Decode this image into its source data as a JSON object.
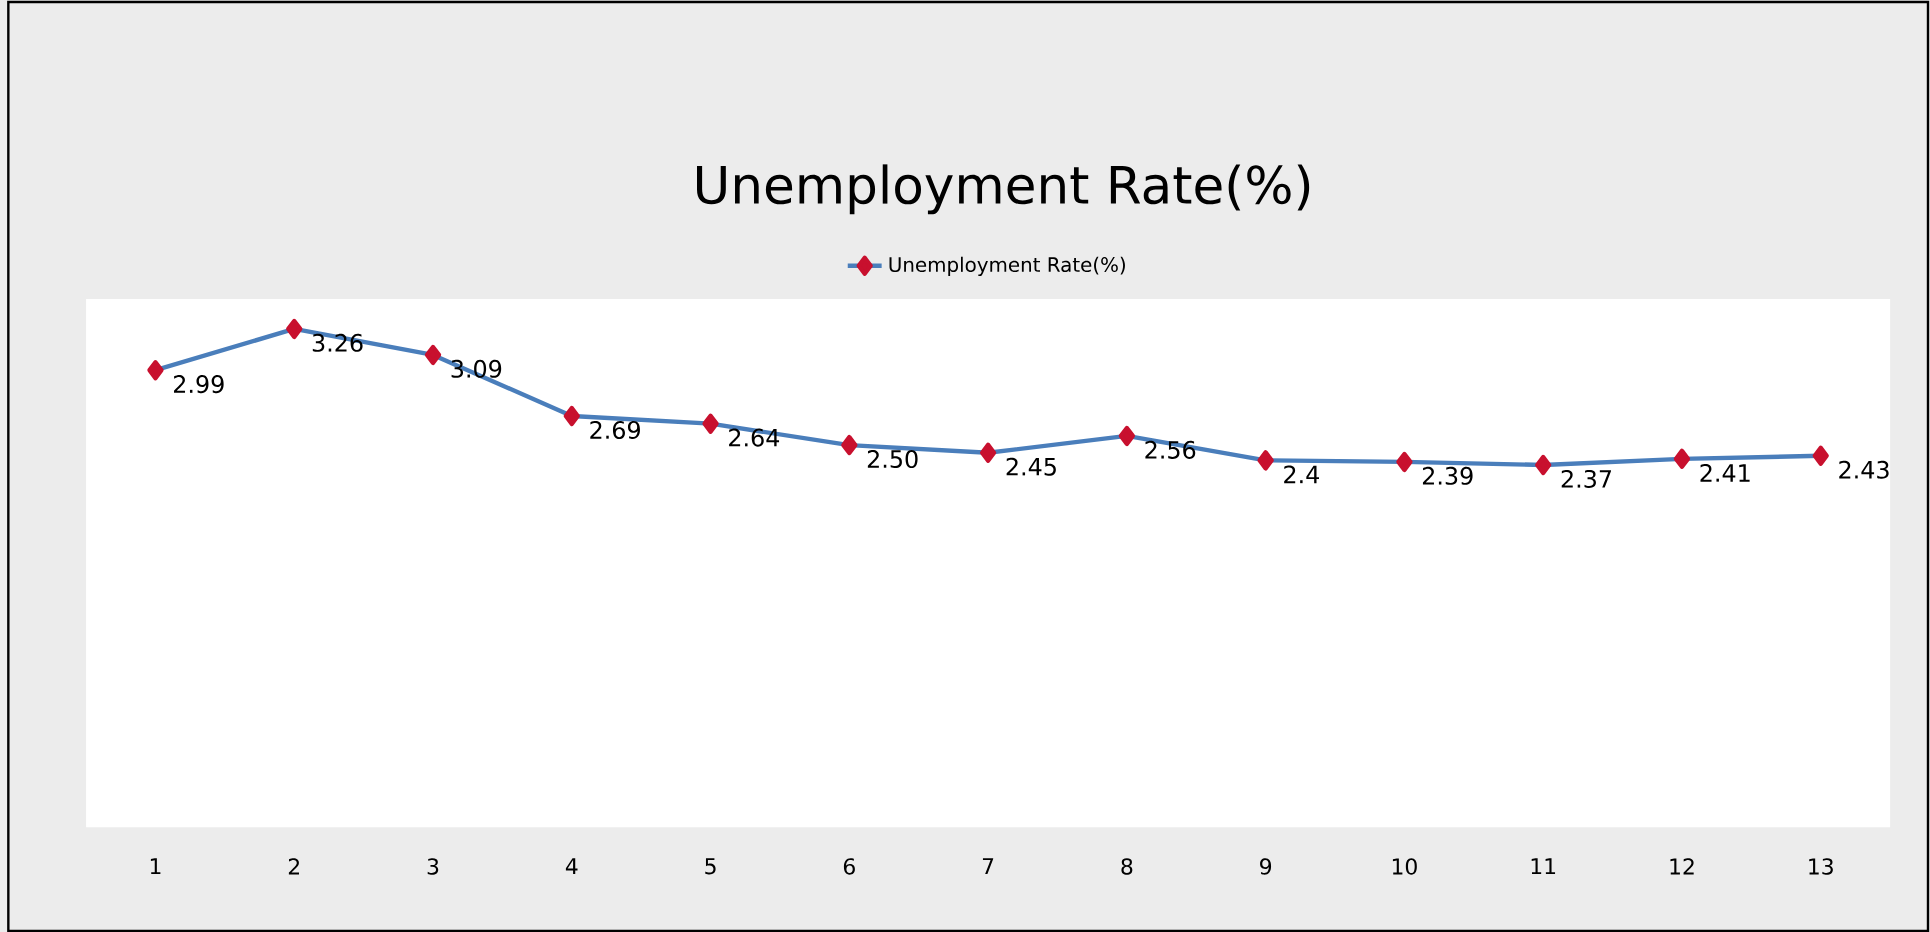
{
  "chart_data": {
    "type": "line",
    "title": "Unemployment Rate(%)",
    "categories": [
      "1",
      "2",
      "3",
      "4",
      "5",
      "6",
      "7",
      "8",
      "9",
      "10",
      "11",
      "12",
      "13"
    ],
    "series": [
      {
        "name": "Unemployment Rate(%)",
        "color": "#4a7ebb",
        "values": [
          2.99,
          3.26,
          3.09,
          2.69,
          2.64,
          2.5,
          2.45,
          2.56,
          2.4,
          2.39,
          2.37,
          2.41,
          2.43
        ],
        "value_labels": [
          "2.99",
          "3.26",
          "3.09",
          "2.69",
          "2.64",
          "2.50",
          "2.45",
          "2.56",
          "2.4",
          "2.39",
          "2.37",
          "2.41",
          "2.43"
        ]
      }
    ],
    "legend": "top",
    "marker": "diamond",
    "line_style": "solid"
  }
}
